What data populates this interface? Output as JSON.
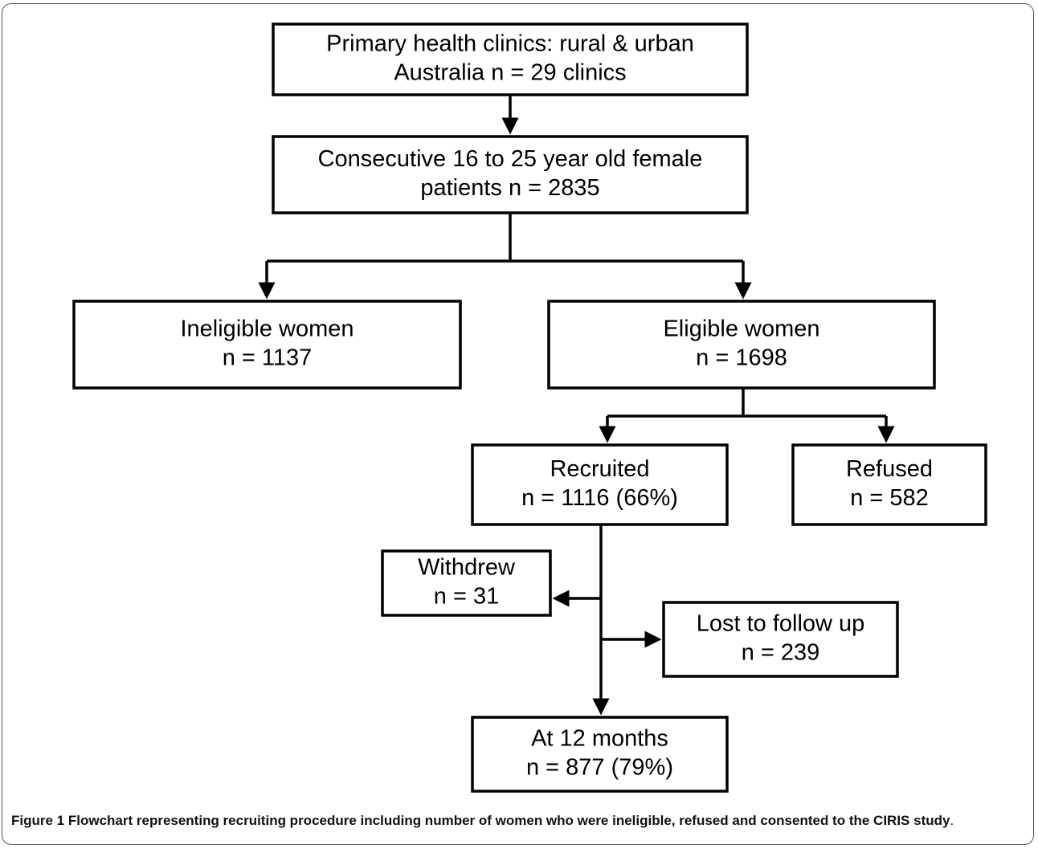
{
  "nodes": [
    {
      "lines": [
        "Primary health clinics: rural & urban",
        "Australia n = 29 clinics"
      ]
    },
    {
      "lines": [
        "Consecutive 16 to 25 year old female",
        "patients n = 2835"
      ]
    },
    {
      "lines": [
        "Ineligible women",
        "n = 1137"
      ]
    },
    {
      "lines": [
        "Eligible women",
        "n = 1698"
      ]
    },
    {
      "lines": [
        "Recruited",
        "n = 1116 (66%)"
      ]
    },
    {
      "lines": [
        "Refused",
        "n = 582"
      ]
    },
    {
      "lines": [
        "Withdrew",
        "n = 31"
      ]
    },
    {
      "lines": [
        "Lost to follow up",
        "n = 239"
      ]
    },
    {
      "lines": [
        "At 12 months",
        "n = 877 (79%)"
      ]
    }
  ],
  "caption": {
    "label": "Figure 1",
    "text": "Flowchart representing recruiting procedure including number of women who were ineligible, refused and consented to the CIRIS study",
    "end": "."
  }
}
